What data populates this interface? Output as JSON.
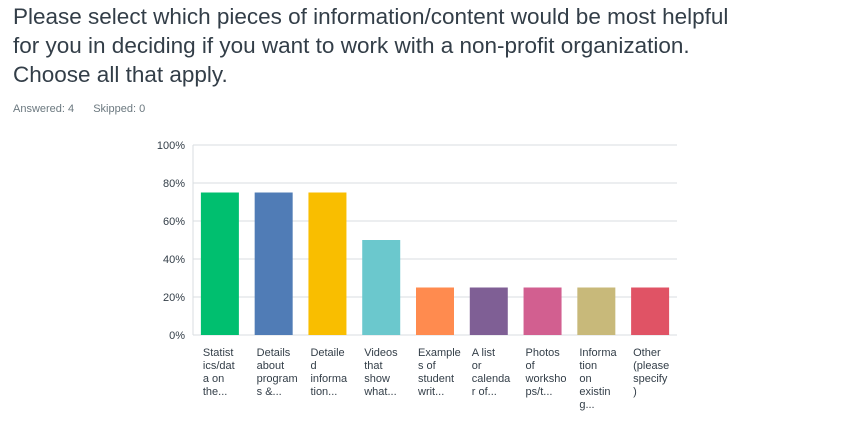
{
  "question": {
    "line1": "Please select which pieces of information/content would be most helpful",
    "line2": "for you in deciding if you want to work with a non-profit organization.",
    "line3": "Choose all that apply."
  },
  "stats": {
    "answered_label": "Answered: 4",
    "skipped_label": "Skipped: 0"
  },
  "chart_data": {
    "type": "bar",
    "ylim": [
      0,
      100
    ],
    "y_ticks": [
      "0%",
      "20%",
      "40%",
      "60%",
      "80%",
      "100%"
    ],
    "grid": true,
    "categories": [
      [
        "Statist",
        "ics/dat",
        "a on",
        "the..."
      ],
      [
        "Details",
        "about",
        "program",
        "s &..."
      ],
      [
        "Detaile",
        "d",
        "informa",
        "tion..."
      ],
      [
        "Videos",
        "that",
        "show",
        "what..."
      ],
      [
        "Example",
        "s of",
        "student",
        "writ..."
      ],
      [
        "A list",
        "or",
        "calenda",
        "r of..."
      ],
      [
        "Photos",
        "of",
        "worksho",
        "ps/t..."
      ],
      [
        "Informa",
        "tion",
        "on",
        "existin",
        "g..."
      ],
      [
        "Other",
        "(please",
        "specify",
        ")"
      ]
    ],
    "values": [
      75,
      75,
      75,
      50,
      25,
      25,
      25,
      25,
      25
    ],
    "colors": [
      "#00bf6f",
      "#507cb6",
      "#f9be00",
      "#6bc8cd",
      "#ff8b4f",
      "#7f5f95",
      "#d25f90",
      "#c8b97a",
      "#e05365"
    ]
  }
}
